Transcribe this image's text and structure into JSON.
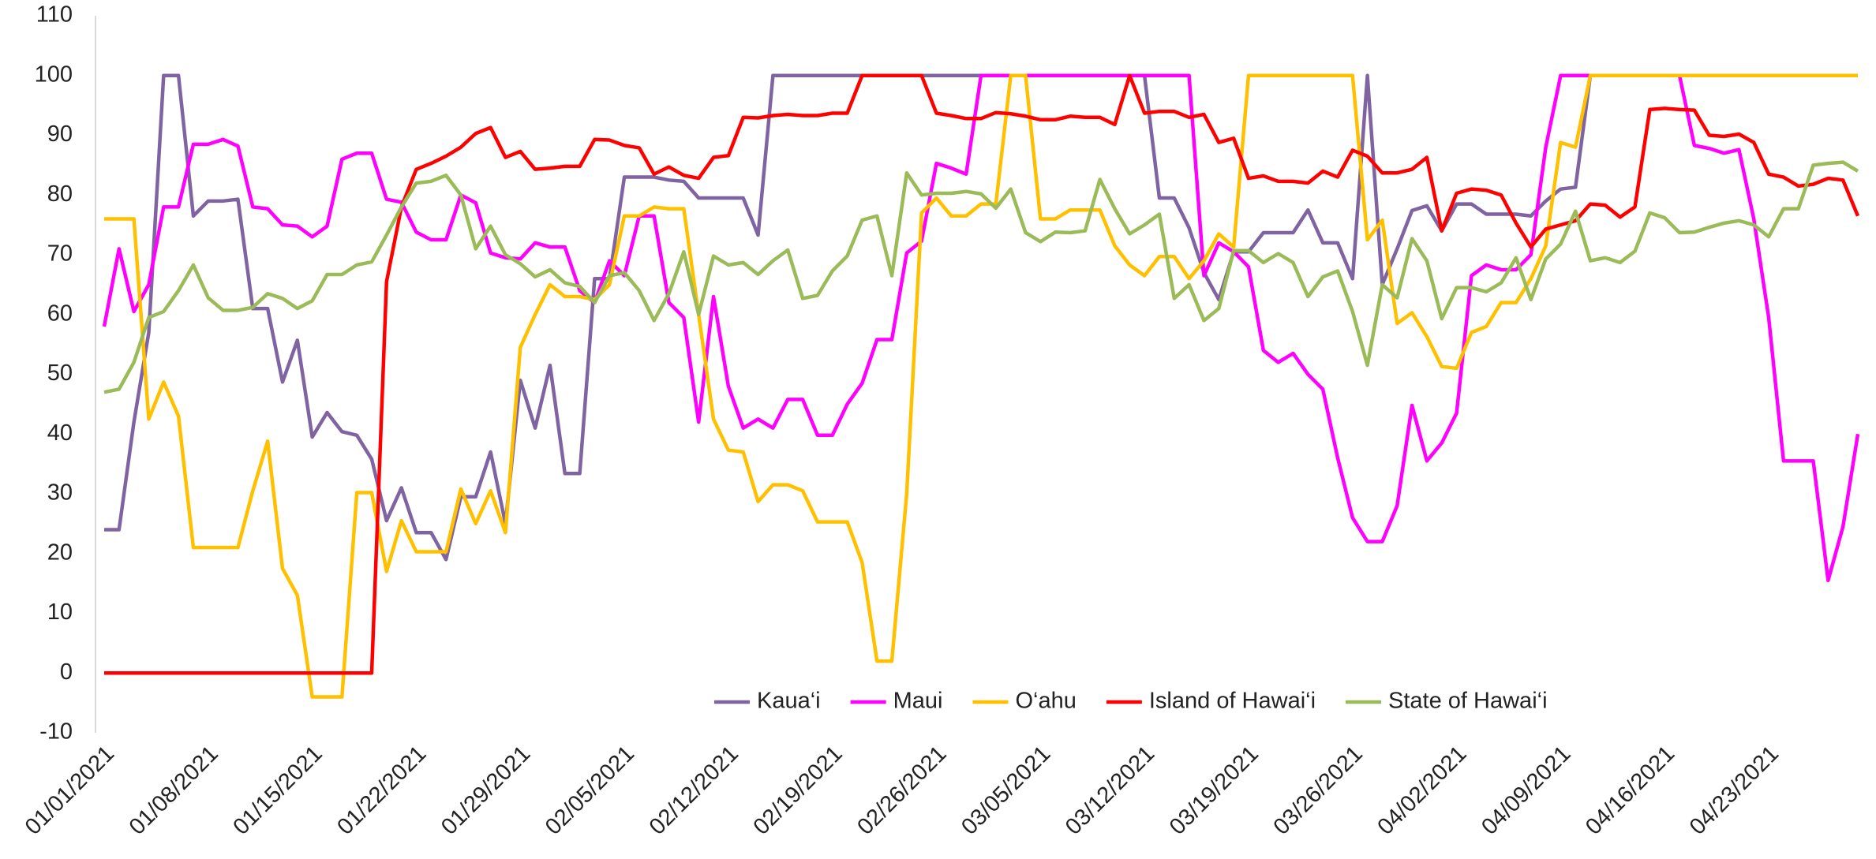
{
  "chart_data": {
    "type": "line",
    "categories": [
      "01/01/2021",
      null,
      null,
      null,
      null,
      null,
      null,
      "01/08/2021",
      null,
      null,
      null,
      null,
      null,
      null,
      "01/15/2021",
      null,
      null,
      null,
      null,
      null,
      null,
      "01/22/2021",
      null,
      null,
      null,
      null,
      null,
      null,
      "01/29/2021",
      null,
      null,
      null,
      null,
      null,
      null,
      "02/05/2021",
      null,
      null,
      null,
      null,
      null,
      null,
      "02/12/2021",
      null,
      null,
      null,
      null,
      null,
      null,
      "02/19/2021",
      null,
      null,
      null,
      null,
      null,
      null,
      "02/26/2021",
      null,
      null,
      null,
      null,
      null,
      null,
      "03/05/2021",
      null,
      null,
      null,
      null,
      null,
      null,
      "03/12/2021",
      null,
      null,
      null,
      null,
      null,
      null,
      "03/19/2021",
      null,
      null,
      null,
      null,
      null,
      null,
      "03/26/2021",
      null,
      null,
      null,
      null,
      null,
      null,
      "04/02/2021",
      null,
      null,
      null,
      null,
      null,
      null,
      "04/09/2021",
      null,
      null,
      null,
      null,
      null,
      null,
      "04/16/2021",
      null,
      null,
      null,
      null,
      null,
      null,
      "04/23/2021",
      null,
      null,
      null,
      null,
      null,
      null
    ],
    "series": [
      {
        "name": "Kaua‘i",
        "color": "#8064a2",
        "values": [
          24,
          24,
          42,
          57,
          100,
          100,
          76.5,
          79,
          79,
          79.3,
          61,
          61,
          48.7,
          55.7,
          39.5,
          43.6,
          40.4,
          39.8,
          35.8,
          25.5,
          31,
          23.5,
          23.5,
          19,
          29.5,
          29.5,
          37,
          25,
          49,
          41,
          51.5,
          33.4,
          33.4,
          66,
          66,
          83,
          83,
          83,
          82.5,
          82.3,
          79.5,
          79.5,
          79.5,
          79.5,
          73.3,
          100,
          100,
          100,
          100,
          100,
          100,
          100,
          100,
          100,
          100,
          100,
          100,
          100,
          100,
          100,
          100,
          100,
          100,
          100,
          100,
          100,
          100,
          100,
          100,
          100,
          100,
          79.5,
          79.5,
          74.5,
          67,
          62.5,
          70.5,
          70.5,
          73.7,
          73.7,
          73.7,
          77.5,
          72,
          72,
          66,
          100,
          65,
          71,
          77.4,
          78.2,
          74,
          78.5,
          78.5,
          76.8,
          76.8,
          76.8,
          76.5,
          79,
          81,
          81.3,
          100,
          100,
          100,
          100,
          100,
          100,
          100,
          100,
          100,
          100,
          100,
          100,
          100,
          100,
          100,
          100,
          100,
          100,
          100
        ]
      },
      {
        "name": "Maui",
        "color": "#ff00ff",
        "values": [
          58,
          71,
          60.5,
          65,
          78,
          78,
          88.5,
          88.5,
          89.3,
          88.2,
          78,
          77.7,
          75,
          74.8,
          73,
          74.8,
          86,
          87,
          87,
          79.3,
          78.8,
          73.8,
          72.5,
          72.5,
          80,
          78.7,
          70.3,
          69.5,
          69.3,
          72,
          71.3,
          71.3,
          64,
          62,
          69,
          66.5,
          76.5,
          76.5,
          62,
          59.5,
          42,
          63,
          48,
          41,
          42.5,
          41,
          45.8,
          45.8,
          39.8,
          39.8,
          45,
          48.5,
          55.8,
          55.8,
          70.3,
          72.3,
          85.3,
          84.5,
          83.5,
          100,
          100,
          100,
          100,
          100,
          100,
          100,
          100,
          100,
          100,
          100,
          100,
          100,
          100,
          100,
          66.5,
          72,
          70.5,
          68,
          54,
          52,
          53.5,
          50,
          47.5,
          36,
          26,
          22,
          22,
          28,
          44.8,
          35.5,
          38.5,
          43.5,
          66.5,
          68.3,
          67.5,
          67.5,
          70,
          88,
          100,
          100,
          100,
          100,
          100,
          100,
          100,
          100,
          100,
          88.3,
          87.8,
          87,
          87.6,
          76,
          59.5,
          35.5,
          35.5,
          35.5,
          15.5,
          24.5,
          40
        ]
      },
      {
        "name": "O‘ahu",
        "color": "#ffc000",
        "values": [
          76,
          76,
          76,
          42.5,
          48.7,
          43,
          21,
          21,
          21,
          21,
          30.5,
          38.8,
          17.5,
          13,
          -4,
          -4,
          -4,
          30.2,
          30.2,
          17,
          25.5,
          20.3,
          20.3,
          20.3,
          30.8,
          25,
          30.5,
          23.5,
          54.5,
          60,
          65,
          63,
          63,
          62.5,
          65,
          76.5,
          76.5,
          78,
          77.7,
          77.7,
          60,
          42.5,
          37.3,
          37,
          28.7,
          31.5,
          31.5,
          30.5,
          25.3,
          25.3,
          25.3,
          18.5,
          2,
          2,
          30,
          77,
          79.5,
          76.5,
          76.5,
          78.5,
          78.5,
          100,
          100,
          76,
          76,
          77.5,
          77.5,
          77.5,
          71.5,
          68.3,
          66.5,
          69.7,
          69.7,
          66,
          69,
          73.5,
          71.3,
          100,
          100,
          100,
          100,
          100,
          100,
          100,
          100,
          72.5,
          75.8,
          58.5,
          60.3,
          56.3,
          51.3,
          51,
          57,
          58,
          62,
          62,
          66,
          71.5,
          88.8,
          88,
          100,
          100,
          100,
          100,
          100,
          100,
          100,
          100,
          100,
          100,
          100,
          100,
          100,
          100,
          100,
          100,
          100,
          100,
          100
        ]
      },
      {
        "name": "Island of Hawai‘i",
        "color": "#ff0000",
        "values": [
          0,
          0,
          0,
          0,
          0,
          0,
          0,
          0,
          0,
          0,
          0,
          0,
          0,
          0,
          0,
          0,
          0,
          0,
          0,
          65.5,
          78,
          84.3,
          85.3,
          86.5,
          88,
          90.3,
          91.3,
          86.3,
          87.3,
          84.3,
          84.5,
          84.8,
          84.8,
          89.3,
          89.2,
          88.3,
          87.9,
          83.5,
          84.7,
          83.3,
          82.8,
          86.3,
          86.6,
          93,
          92.9,
          93.3,
          93.5,
          93.3,
          93.3,
          93.7,
          93.7,
          100,
          100,
          100,
          100,
          100,
          93.7,
          93.3,
          92.8,
          92.8,
          93.8,
          93.6,
          93.2,
          92.6,
          92.6,
          93.2,
          93,
          93,
          91.8,
          100,
          93.7,
          94,
          94,
          93,
          93.5,
          88.8,
          89.5,
          82.8,
          83.2,
          82.3,
          82.3,
          82,
          84,
          83,
          87.5,
          86.5,
          83.7,
          83.7,
          84.3,
          86.3,
          74,
          80.3,
          81,
          80.8,
          80,
          75.3,
          71.3,
          74.3,
          75,
          75.7,
          78.5,
          78.3,
          76.3,
          78,
          94.3,
          94.5,
          94.3,
          94.2,
          90,
          89.8,
          90.2,
          88.8,
          83.5,
          83,
          81.5,
          81.8,
          82.8,
          82.5,
          76.5
        ]
      },
      {
        "name": "State of Hawai‘i",
        "color": "#9bbb59",
        "values": [
          47,
          47.5,
          52,
          59.5,
          60.5,
          64,
          68.3,
          62.8,
          60.7,
          60.7,
          61.2,
          63.5,
          62.7,
          61,
          62.3,
          66.7,
          66.7,
          68.3,
          68.8,
          73.3,
          78,
          82,
          82.3,
          83.3,
          80,
          71,
          74.8,
          70,
          68.5,
          66.3,
          67.5,
          65.3,
          64.7,
          62,
          66.5,
          67,
          64,
          59,
          63.5,
          70.5,
          60,
          69.8,
          68.3,
          68.7,
          66.7,
          69,
          70.8,
          62.7,
          63.2,
          67.3,
          69.8,
          75.8,
          76.5,
          66.5,
          83.7,
          80,
          80.3,
          80.3,
          80.6,
          80.2,
          77.8,
          81,
          73.7,
          72.2,
          73.8,
          73.7,
          74,
          82.6,
          77.7,
          73.5,
          75,
          76.8,
          62.7,
          65,
          59,
          61,
          70.7,
          70.7,
          68.7,
          70.2,
          68.7,
          63,
          66.3,
          67.3,
          60.5,
          51.5,
          65,
          62.8,
          72.7,
          69,
          59.3,
          64.5,
          64.5,
          63.8,
          65.3,
          69.5,
          62.5,
          69.3,
          71.8,
          77.3,
          69,
          69.5,
          68.7,
          70.6,
          77,
          76.2,
          73.7,
          73.8,
          74.6,
          75.3,
          75.7,
          75,
          73,
          77.7,
          77.7,
          85,
          85.3,
          85.5,
          84
        ]
      }
    ],
    "ylim": [
      -10,
      110
    ],
    "yticks": [
      -10,
      0,
      10,
      20,
      30,
      40,
      50,
      60,
      70,
      80,
      90,
      100,
      110
    ],
    "grid": false,
    "legend": "bottom"
  }
}
